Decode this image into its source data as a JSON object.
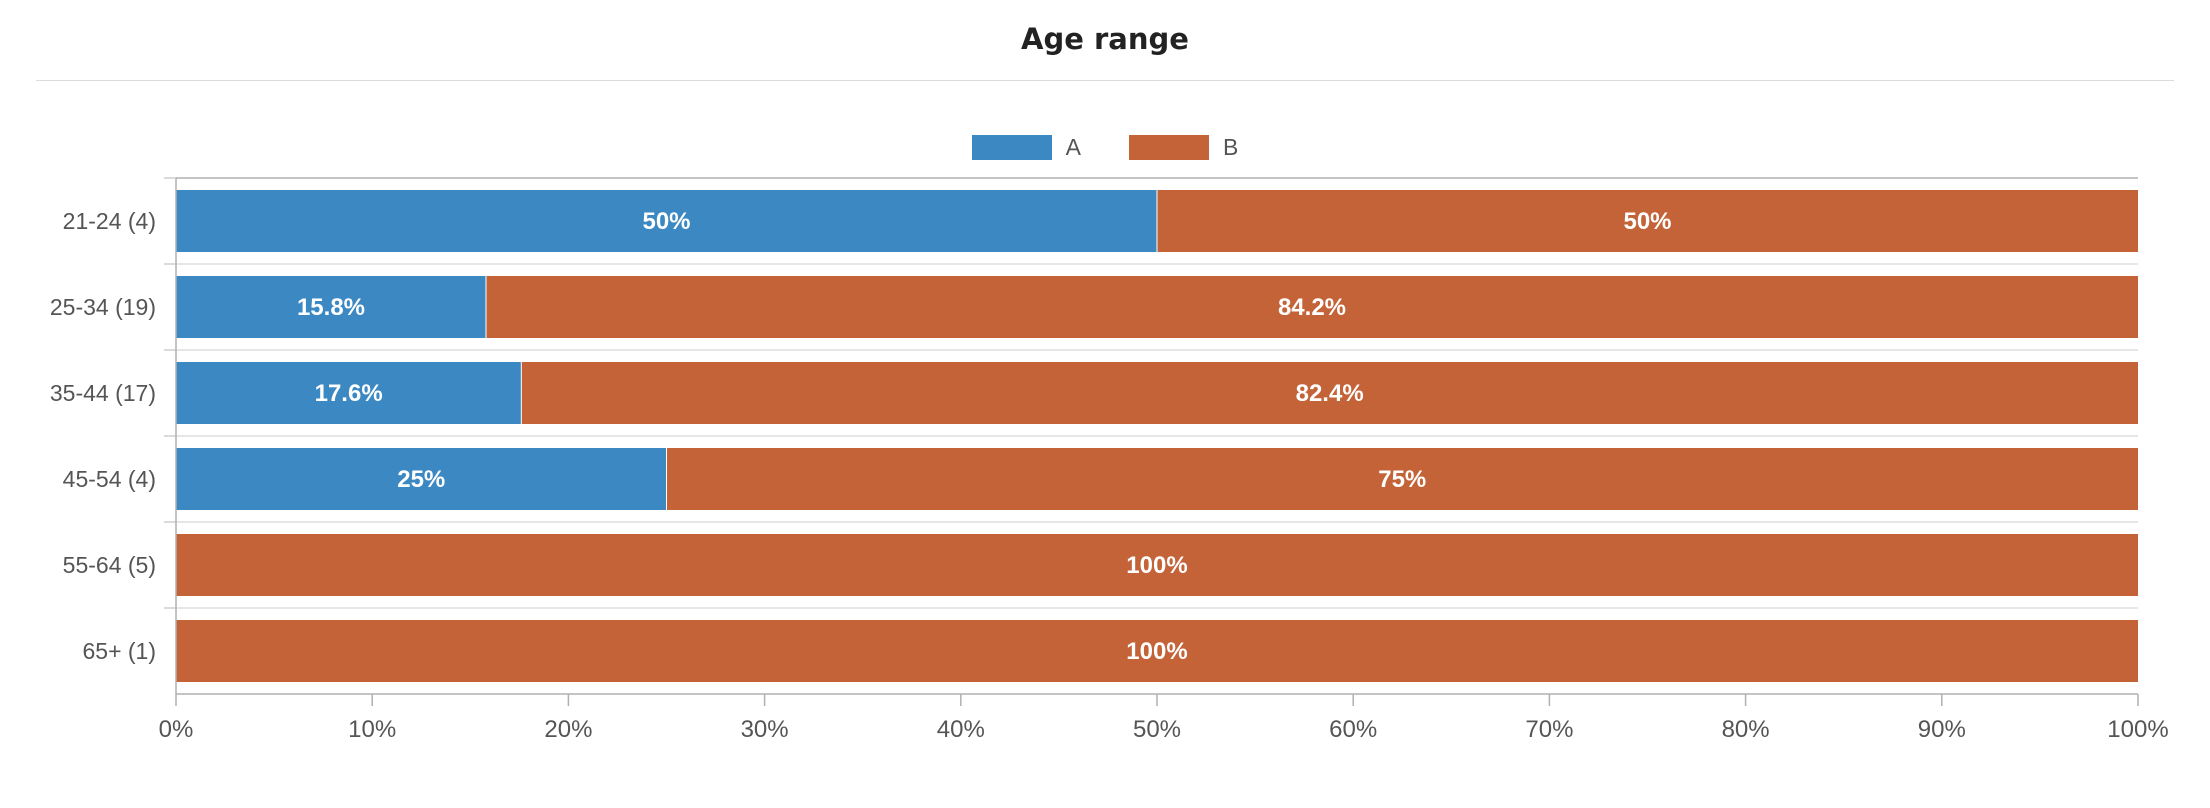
{
  "chart_data": {
    "type": "bar",
    "orientation": "horizontal",
    "stacked": "percent",
    "title": "Age range",
    "categories": [
      "21-24 (4)",
      "25-34 (19)",
      "35-44 (17)",
      "45-54 (4)",
      "55-64 (5)",
      "65+ (1)"
    ],
    "series": [
      {
        "name": "A",
        "color": "#3b88c3",
        "values": [
          50,
          15.8,
          17.6,
          25,
          0,
          0
        ],
        "labels": [
          "50%",
          "15.8%",
          "17.6%",
          "25%",
          "",
          ""
        ]
      },
      {
        "name": "B",
        "color": "#c46238",
        "values": [
          50,
          84.2,
          82.4,
          75,
          100,
          100
        ],
        "labels": [
          "50%",
          "84.2%",
          "82.4%",
          "75%",
          "100%",
          "100%"
        ]
      }
    ],
    "xlim": [
      0,
      100
    ],
    "xticks": [
      "0%",
      "10%",
      "20%",
      "30%",
      "40%",
      "50%",
      "60%",
      "70%",
      "80%",
      "90%",
      "100%"
    ],
    "legend_position": "top-center",
    "grid": false
  }
}
